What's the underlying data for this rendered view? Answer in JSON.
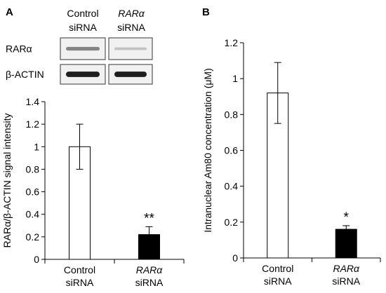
{
  "panels": {
    "a_letter": "A",
    "b_letter": "B"
  },
  "blot": {
    "lane_headers": [
      {
        "line1": "Control",
        "line2": "siRNA",
        "italic": false
      },
      {
        "line1": "RARα",
        "line2": "siRNA",
        "italic": true
      }
    ],
    "rows": [
      {
        "label": "RARα",
        "lane_intensity": [
          0.45,
          0.15
        ]
      },
      {
        "label": "β-ACTIN",
        "lane_intensity": [
          0.95,
          0.95
        ]
      }
    ]
  },
  "chart_data": [
    {
      "panel": "A",
      "type": "bar",
      "categories": [
        {
          "line1": "Control",
          "line2": "siRNA",
          "italic": false
        },
        {
          "line1": "RARα",
          "line2": "siRNA",
          "italic": true
        }
      ],
      "values": [
        1.0,
        0.22
      ],
      "error": [
        0.2,
        0.07
      ],
      "fills": [
        "#ffffff",
        "#000000"
      ],
      "significance": [
        "",
        "**"
      ],
      "ylabel": "RARα/β-ACTIN signal intensity",
      "ylim": [
        0,
        1.4
      ],
      "yticks": [
        0,
        0.2,
        0.4,
        0.6,
        0.8,
        1,
        1.2,
        1.4
      ],
      "ytick_labels": [
        "0",
        "0.2",
        "0.4",
        "0.6",
        "0.8",
        "1",
        "1.2",
        "1.4"
      ],
      "grid": false
    },
    {
      "panel": "B",
      "type": "bar",
      "categories": [
        {
          "line1": "Control",
          "line2": "siRNA",
          "italic": false
        },
        {
          "line1": "RARα",
          "line2": "siRNA",
          "italic": true
        }
      ],
      "values": [
        0.92,
        0.16
      ],
      "error": [
        0.17,
        0.02
      ],
      "fills": [
        "#ffffff",
        "#000000"
      ],
      "significance": [
        "",
        "*"
      ],
      "ylabel": "Intranuclear Am80 concentration (μM)",
      "ylim": [
        0,
        1.2
      ],
      "yticks": [
        0,
        0.2,
        0.4,
        0.6,
        0.8,
        1,
        1.2
      ],
      "ytick_labels": [
        "0",
        "0.2",
        "0.4",
        "0.6",
        "0.8",
        "1",
        "1.2"
      ],
      "grid": false
    }
  ]
}
